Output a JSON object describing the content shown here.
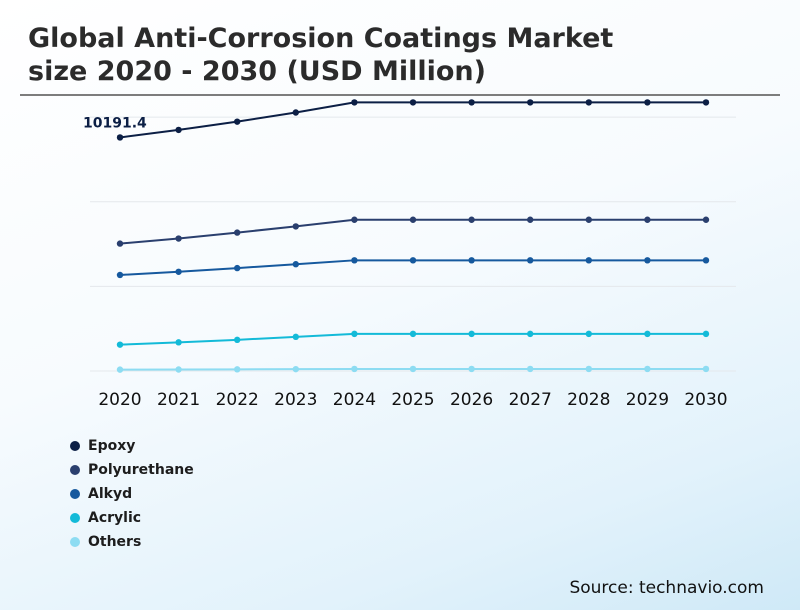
{
  "header": {
    "title_line1": "Global Anti-Corrosion Coatings Market",
    "title_line2": "size 2020 - 2030 (USD Million)"
  },
  "source": "Source: technavio.com",
  "chart_data": {
    "type": "line",
    "title": "Global Anti-Corrosion Coatings Market size 2020 - 2030 (USD Million)",
    "xlabel": "",
    "ylabel": "",
    "categories": [
      "2020",
      "2021",
      "2022",
      "2023",
      "2024",
      "2025",
      "2026",
      "2027",
      "2028",
      "2029",
      "2030"
    ],
    "ylim": [
      0,
      12000
    ],
    "grid": true,
    "legend_position": "bottom-left",
    "annotation": {
      "series": "Epoxy",
      "index": 0,
      "text": "10191.4"
    },
    "series": [
      {
        "name": "Epoxy",
        "color": "#0c1f45",
        "values": [
          10191.4,
          10520,
          10880,
          11280,
          11720,
          11720,
          11720,
          11720,
          11720,
          11720,
          11720
        ]
      },
      {
        "name": "Polyurethane",
        "color": "#2a3f6e",
        "values": [
          5560,
          5780,
          6040,
          6310,
          6600,
          6600,
          6600,
          6600,
          6600,
          6600,
          6600
        ]
      },
      {
        "name": "Alkyd",
        "color": "#16599e",
        "values": [
          4190,
          4330,
          4490,
          4660,
          4830,
          4830,
          4830,
          4830,
          4830,
          4830,
          4830
        ]
      },
      {
        "name": "Acrylic",
        "color": "#13bad8",
        "values": [
          1150,
          1250,
          1360,
          1490,
          1620,
          1620,
          1620,
          1620,
          1620,
          1620,
          1620
        ]
      },
      {
        "name": "Others",
        "color": "#8ddcf2",
        "values": [
          60,
          65,
          72,
          80,
          90,
          90,
          90,
          90,
          90,
          90,
          90
        ]
      }
    ]
  }
}
